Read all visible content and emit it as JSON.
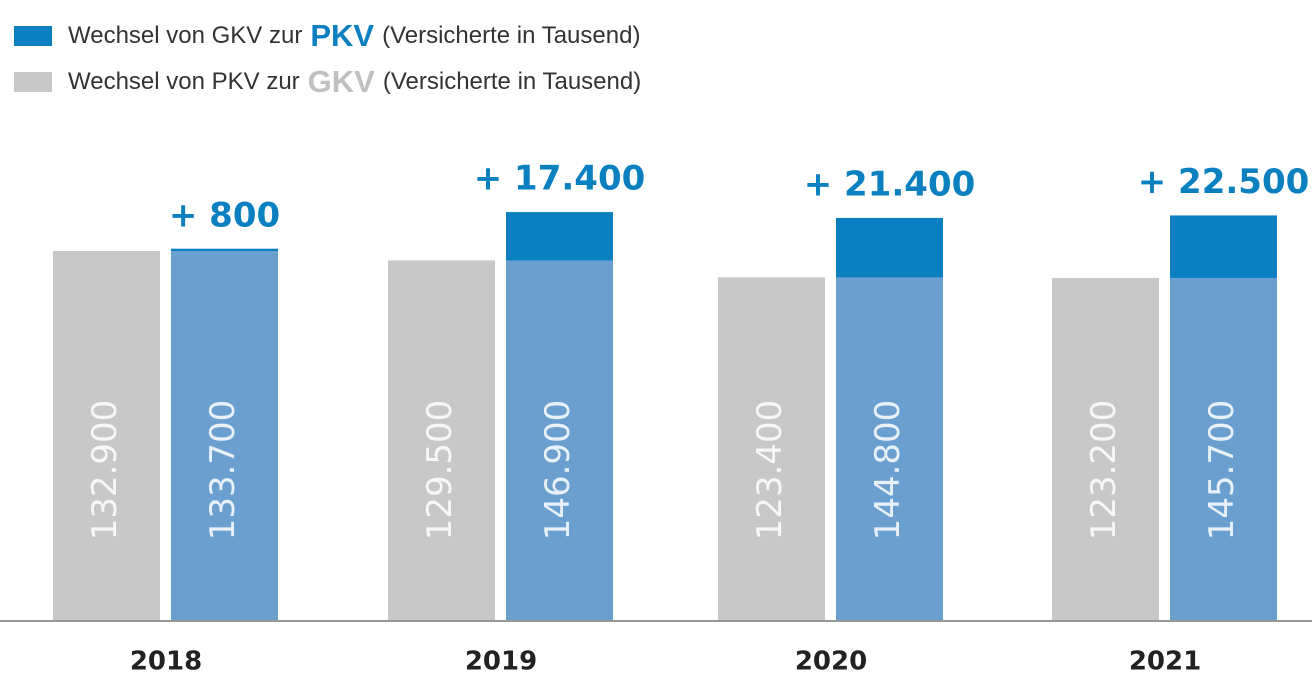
{
  "chart_data": {
    "type": "bar",
    "categories": [
      "2018",
      "2019",
      "2020",
      "2021"
    ],
    "series": [
      {
        "name_parts": [
          "Wechsel von PKV zur",
          "GKV",
          "(Versicherte in Tausend)"
        ],
        "color": "#c8c8c8",
        "highlight_color": "#c0c0c0",
        "values": [
          132900,
          129500,
          123400,
          123200
        ],
        "value_labels": [
          "132.900",
          "129.500",
          "123.400",
          "123.200"
        ]
      },
      {
        "name_parts": [
          "Wechsel von GKV zur",
          "PKV",
          "(Versicherte in Tausend)"
        ],
        "color": "#6a9fd0",
        "highlight_color": "#0a80c0",
        "values": [
          133700,
          146900,
          144800,
          145700
        ],
        "value_labels": [
          "133.700",
          "146.900",
          "144.800",
          "145.700"
        ]
      }
    ],
    "differences": {
      "color": "#0a80c0",
      "values": [
        800,
        17400,
        21400,
        22500
      ],
      "value_labels": [
        "+ 800",
        "+ 17.400",
        "+ 21.400",
        "+ 22.500"
      ]
    }
  }
}
